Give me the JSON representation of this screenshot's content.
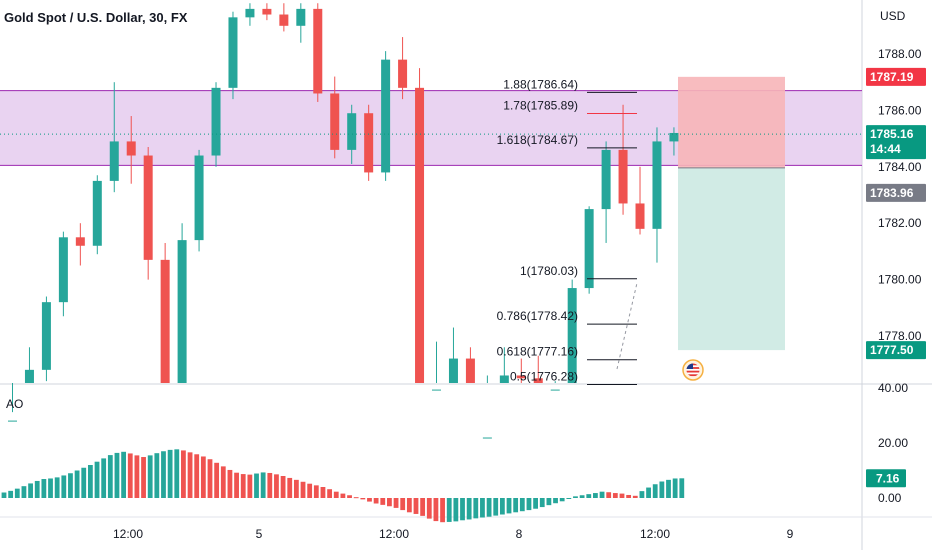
{
  "header": {
    "symbol_title": "Gold Spot / U.S. Dollar, 30, FX",
    "currency": "USD"
  },
  "colors": {
    "up": "#26a69a",
    "down": "#ef5350",
    "zone_fill": "#e1c4ec",
    "zone_line": "#9c27b0",
    "risk_fill": "#f7b5b8",
    "reward_fill": "#d1ebe5",
    "current_badge": "#089981",
    "alert_badge": "#f23645",
    "entry_badge": "#787b86"
  },
  "chart_data": [
    {
      "type": "candlestick",
      "title": "Gold Spot / U.S. Dollar, 30, FX",
      "y_axis": {
        "ticks": [
          "1788.00",
          "1786.00",
          "1784.00",
          "1782.00",
          "1780.00",
          "1778.00"
        ],
        "ylim": [
          1773.5,
          1789.8
        ]
      },
      "x_axis": {
        "ticks": [
          "12:00",
          "5",
          "12:00",
          "8",
          "12:00",
          "9"
        ]
      },
      "candles": [
        {
          "o": 1774.0,
          "h": 1775.3,
          "l": 1773.2,
          "c": 1775.0
        },
        {
          "o": 1775.0,
          "h": 1777.6,
          "l": 1774.7,
          "c": 1776.8
        },
        {
          "o": 1776.8,
          "h": 1779.4,
          "l": 1776.4,
          "c": 1779.2
        },
        {
          "o": 1779.2,
          "h": 1781.7,
          "l": 1778.7,
          "c": 1781.5
        },
        {
          "o": 1781.5,
          "h": 1782.0,
          "l": 1780.5,
          "c": 1781.2
        },
        {
          "o": 1781.2,
          "h": 1783.7,
          "l": 1780.9,
          "c": 1783.5
        },
        {
          "o": 1783.5,
          "h": 1787.0,
          "l": 1783.1,
          "c": 1784.9
        },
        {
          "o": 1784.9,
          "h": 1785.8,
          "l": 1783.4,
          "c": 1784.4
        },
        {
          "o": 1784.4,
          "h": 1784.7,
          "l": 1780.0,
          "c": 1780.7
        },
        {
          "o": 1780.7,
          "h": 1781.3,
          "l": 1773.5,
          "c": 1774.0
        },
        {
          "o": 1774.0,
          "h": 1782.0,
          "l": 1773.7,
          "c": 1781.4
        },
        {
          "o": 1781.4,
          "h": 1784.6,
          "l": 1781.0,
          "c": 1784.4
        },
        {
          "o": 1784.4,
          "h": 1787.0,
          "l": 1784.0,
          "c": 1786.8
        },
        {
          "o": 1786.8,
          "h": 1789.5,
          "l": 1786.4,
          "c": 1789.3
        },
        {
          "o": 1789.3,
          "h": 1789.8,
          "l": 1789.0,
          "c": 1789.6
        },
        {
          "o": 1789.6,
          "h": 1789.8,
          "l": 1789.2,
          "c": 1789.4
        },
        {
          "o": 1789.4,
          "h": 1789.8,
          "l": 1788.8,
          "c": 1789.0
        },
        {
          "o": 1789.0,
          "h": 1789.8,
          "l": 1788.4,
          "c": 1789.6
        },
        {
          "o": 1789.6,
          "h": 1789.8,
          "l": 1786.3,
          "c": 1786.6
        },
        {
          "o": 1786.6,
          "h": 1787.2,
          "l": 1784.3,
          "c": 1784.6
        },
        {
          "o": 1784.6,
          "h": 1786.2,
          "l": 1784.1,
          "c": 1785.9
        },
        {
          "o": 1785.9,
          "h": 1786.2,
          "l": 1783.5,
          "c": 1783.8
        },
        {
          "o": 1783.8,
          "h": 1788.1,
          "l": 1783.5,
          "c": 1787.8
        },
        {
          "o": 1787.8,
          "h": 1788.6,
          "l": 1786.4,
          "c": 1786.8
        },
        {
          "o": 1786.8,
          "h": 1787.5,
          "l": 1773.5,
          "c": 1773.7
        },
        {
          "o": 1773.7,
          "h": 1777.8,
          "l": 1773.5,
          "c": 1776.1
        },
        {
          "o": 1776.1,
          "h": 1778.3,
          "l": 1775.6,
          "c": 1777.2
        },
        {
          "o": 1777.2,
          "h": 1777.6,
          "l": 1773.5,
          "c": 1774.1
        },
        {
          "o": 1774.1,
          "h": 1776.6,
          "l": 1773.5,
          "c": 1774.4
        },
        {
          "o": 1774.4,
          "h": 1777.6,
          "l": 1773.5,
          "c": 1776.6
        },
        {
          "o": 1776.6,
          "h": 1777.2,
          "l": 1775.3,
          "c": 1776.5
        },
        {
          "o": 1776.5,
          "h": 1777.3,
          "l": 1775.6,
          "c": 1775.8
        },
        {
          "o": 1775.8,
          "h": 1776.4,
          "l": 1774.1,
          "c": 1776.1
        },
        {
          "o": 1776.1,
          "h": 1780.0,
          "l": 1775.6,
          "c": 1779.7
        },
        {
          "o": 1779.7,
          "h": 1782.6,
          "l": 1779.5,
          "c": 1782.5
        },
        {
          "o": 1782.5,
          "h": 1784.9,
          "l": 1781.3,
          "c": 1784.6
        },
        {
          "o": 1784.6,
          "h": 1786.2,
          "l": 1782.3,
          "c": 1782.7
        },
        {
          "o": 1782.7,
          "h": 1784.0,
          "l": 1781.6,
          "c": 1781.8
        },
        {
          "o": 1781.8,
          "h": 1785.4,
          "l": 1780.6,
          "c": 1784.9
        },
        {
          "o": 1784.9,
          "h": 1785.4,
          "l": 1784.4,
          "c": 1785.2
        }
      ],
      "fib_levels": [
        {
          "label": "1.88(1786.64)",
          "price": 1786.64,
          "color": "#131722"
        },
        {
          "label": "1.78(1785.89)",
          "price": 1785.89,
          "color": "#f23645"
        },
        {
          "label": "1.618(1784.67)",
          "price": 1784.67,
          "color": "#131722"
        },
        {
          "label": "1(1780.03)",
          "price": 1780.03,
          "color": "#131722"
        },
        {
          "label": "0.786(1778.42)",
          "price": 1778.42,
          "color": "#131722"
        },
        {
          "label": "0.618(1777.16)",
          "price": 1777.16,
          "color": "#131722"
        },
        {
          "label": "0.5(1776.28)",
          "price": 1776.28,
          "color": "#131722"
        }
      ],
      "zone": {
        "top": 1786.7,
        "bottom": 1784.05
      },
      "position": {
        "stop": 1787.19,
        "entry": 1783.96,
        "target": 1777.5
      },
      "current_price": {
        "value": "1785.16",
        "countdown": "14:44",
        "price": 1785.16
      },
      "price_badges": {
        "stop": "1787.19",
        "entry": "1783.96",
        "target": "1777.50"
      }
    },
    {
      "type": "bar",
      "name": "AO",
      "y_axis": {
        "ticks": [
          "40.00",
          "20.00",
          "0.00"
        ],
        "ylim": [
          0,
          40
        ]
      },
      "current_value": "7.16",
      "values": [
        2.0,
        2.6,
        3.4,
        4.3,
        5.3,
        6.2,
        6.9,
        7.1,
        7.5,
        8.2,
        9.0,
        10.0,
        11.0,
        12.0,
        13.2,
        14.4,
        15.6,
        16.4,
        16.8,
        16.2,
        15.5,
        14.9,
        15.5,
        16.3,
        17.0,
        17.5,
        17.7,
        17.3,
        16.6,
        15.9,
        15.1,
        14.1,
        12.8,
        11.5,
        10.2,
        9.2,
        8.7,
        8.5,
        8.9,
        9.3,
        9.1,
        8.6,
        8.0,
        7.3,
        6.6,
        5.9,
        5.2,
        4.6,
        4.0,
        3.2,
        2.3,
        1.6,
        1.0,
        0.3,
        -0.5,
        -1.3,
        -2.0,
        -2.5,
        -3.0,
        -3.6,
        -4.4,
        -5.2,
        -5.8,
        -6.5,
        -7.5,
        -8.4,
        -8.8,
        -8.7,
        -8.5,
        -8.1,
        -7.8,
        -7.4,
        -7.1,
        -6.8,
        -6.4,
        -6.0,
        -5.6,
        -5.2,
        -4.8,
        -4.4,
        -3.9,
        -3.3,
        -2.6,
        -1.9,
        -1.2,
        -0.3,
        0.6,
        1.0,
        1.4,
        1.8,
        2.3,
        2.1,
        1.8,
        1.6,
        1.1,
        0.8,
        2.5,
        3.8,
        5.0,
        6.0,
        6.6,
        7.1,
        7.16
      ]
    }
  ]
}
